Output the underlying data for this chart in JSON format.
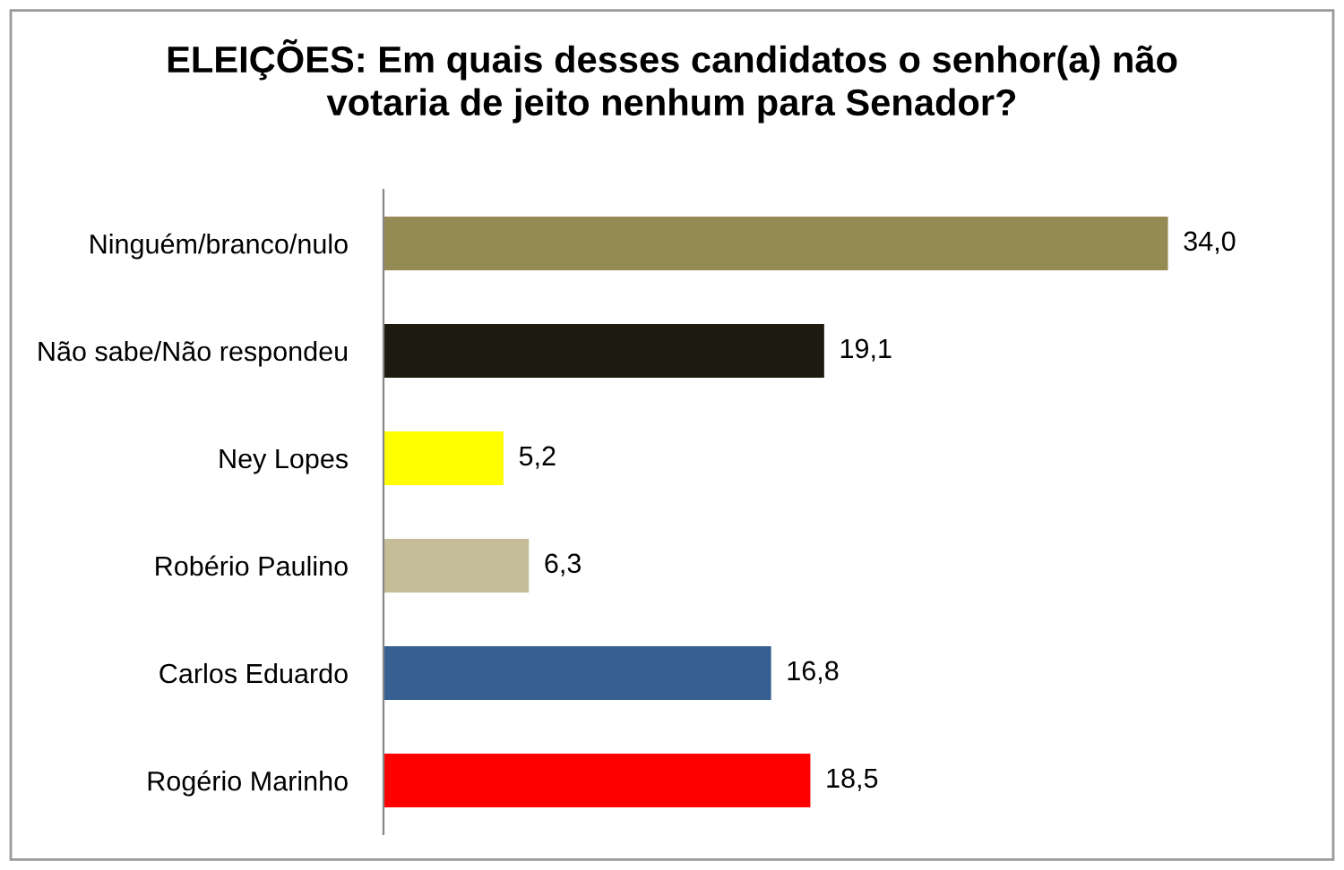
{
  "chart_data": {
    "type": "bar",
    "orientation": "horizontal",
    "title": "ELEIÇÕES: Em quais desses candidatos o senhor(a) não\nvotaria de jeito nenhum para Senador?",
    "categories": [
      "Ninguém/branco/nulo",
      "Não sabe/Não respondeu",
      "Ney Lopes",
      "Robério Paulino",
      "Carlos Eduardo",
      "Rogério Marinho"
    ],
    "values": [
      34.0,
      19.1,
      5.2,
      6.3,
      16.8,
      18.5
    ],
    "value_labels": [
      "34,0",
      "19,1",
      "5,2",
      "6,3",
      "16,8",
      "18,5"
    ],
    "colors": [
      "#948a54",
      "#1d1b10",
      "#ffff00",
      "#c4bd97",
      "#376092",
      "#ff0000"
    ],
    "grid": false,
    "legend": false
  }
}
